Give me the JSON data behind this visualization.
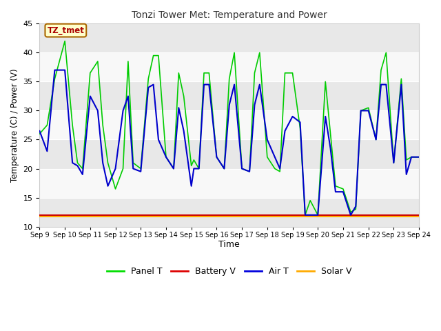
{
  "title": "Tonzi Tower Met: Temperature and Power",
  "xlabel": "Time",
  "ylabel": "Temperature (C) / Power (V)",
  "ylim": [
    10,
    45
  ],
  "yticks": [
    10,
    15,
    20,
    25,
    30,
    35,
    40,
    45
  ],
  "bg_color": "#ffffff",
  "plot_bg_color": "#f0f0f0",
  "timezone_label": "TZ_tmet",
  "legend_entries": [
    "Panel T",
    "Battery V",
    "Air T",
    "Solar V"
  ],
  "legend_colors": [
    "#00dd00",
    "#dd0000",
    "#0000dd",
    "#ffaa00"
  ],
  "x_tick_labels": [
    "Sep 9",
    "Sep 10",
    "Sep 11",
    "Sep 12",
    "Sep 13",
    "Sep 14",
    "Sep 15",
    "Sep 16",
    "Sep 17",
    "Sep 18",
    "Sep 19",
    "Sep 20",
    "Sep 21",
    "Sep 22",
    "Sep 23",
    "Sep 24"
  ],
  "panel_t_x": [
    0.0,
    0.3,
    0.6,
    1.0,
    1.3,
    1.5,
    1.7,
    2.0,
    2.3,
    2.5,
    2.7,
    3.0,
    3.3,
    3.5,
    3.7,
    4.0,
    4.3,
    4.5,
    4.7,
    5.0,
    5.3,
    5.5,
    5.7,
    6.0,
    6.1,
    6.3,
    6.5,
    6.7,
    7.0,
    7.3,
    7.5,
    7.7,
    8.0,
    8.3,
    8.5,
    8.7,
    9.0,
    9.3,
    9.5,
    9.7,
    10.0,
    10.3,
    10.5,
    10.7,
    11.0,
    11.3,
    11.5,
    11.7,
    12.0,
    12.3,
    12.5,
    12.7,
    13.0,
    13.3,
    13.5,
    13.7,
    14.0,
    14.3,
    14.5,
    14.7,
    15.0
  ],
  "panel_t": [
    26.0,
    27.5,
    35.5,
    42.0,
    27.5,
    21.0,
    20.0,
    36.5,
    38.5,
    27.5,
    21.0,
    16.5,
    20.0,
    38.5,
    21.0,
    20.0,
    35.5,
    39.5,
    39.5,
    22.0,
    20.0,
    36.5,
    32.5,
    20.5,
    21.5,
    20.0,
    36.5,
    36.5,
    22.0,
    20.0,
    35.5,
    40.0,
    20.0,
    19.5,
    36.5,
    40.0,
    22.0,
    20.0,
    19.5,
    36.5,
    36.5,
    27.0,
    12.0,
    14.5,
    12.0,
    35.0,
    26.0,
    17.0,
    16.5,
    12.5,
    13.0,
    30.0,
    30.5,
    25.0,
    37.0,
    40.0,
    21.0,
    35.5,
    21.5,
    22.0,
    22.0
  ],
  "air_t_x": [
    0.0,
    0.3,
    0.6,
    1.0,
    1.3,
    1.5,
    1.7,
    2.0,
    2.3,
    2.5,
    2.7,
    3.0,
    3.3,
    3.5,
    3.7,
    4.0,
    4.3,
    4.5,
    4.7,
    5.0,
    5.3,
    5.5,
    5.7,
    6.0,
    6.1,
    6.3,
    6.5,
    6.7,
    7.0,
    7.3,
    7.5,
    7.7,
    8.0,
    8.3,
    8.5,
    8.7,
    9.0,
    9.3,
    9.5,
    9.7,
    10.0,
    10.3,
    10.5,
    10.7,
    11.0,
    11.3,
    11.5,
    11.7,
    12.0,
    12.3,
    12.5,
    12.7,
    13.0,
    13.3,
    13.5,
    13.7,
    14.0,
    14.3,
    14.5,
    14.7,
    15.0
  ],
  "air_t": [
    26.5,
    23.0,
    37.0,
    37.0,
    21.0,
    20.5,
    19.0,
    32.5,
    30.0,
    21.0,
    17.0,
    20.0,
    30.0,
    32.5,
    20.0,
    19.5,
    34.0,
    34.5,
    25.0,
    22.0,
    20.0,
    30.5,
    26.5,
    17.0,
    20.0,
    20.0,
    34.5,
    34.5,
    22.0,
    20.0,
    31.0,
    34.5,
    20.0,
    19.5,
    31.0,
    34.5,
    25.0,
    22.0,
    20.0,
    26.5,
    29.0,
    28.0,
    12.0,
    12.0,
    12.0,
    29.0,
    23.5,
    16.0,
    16.0,
    12.0,
    13.5,
    30.0,
    30.0,
    25.0,
    34.5,
    34.5,
    21.0,
    34.5,
    19.0,
    22.0,
    22.0
  ],
  "battery_v_flat": 12.0,
  "solar_v_flat": 11.7,
  "line_color_panel": "#00cc00",
  "line_color_air": "#0000cc",
  "line_color_battery": "#cc0000",
  "line_color_solar": "#ffaa00",
  "grid_color": "#ffffff",
  "stripe_color": "#e8e8e8",
  "white_color": "#f8f8f8"
}
